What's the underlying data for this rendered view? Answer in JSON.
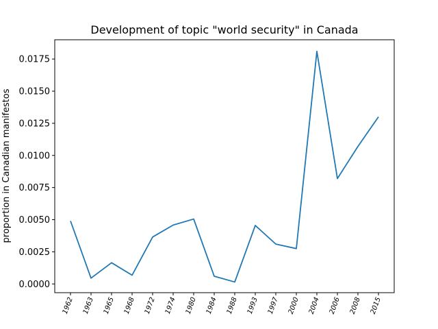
{
  "chart_data": {
    "type": "line",
    "title": "Development of topic \"world security\" in Canada",
    "xlabel": "",
    "ylabel": "proportion in Canadian manifestos",
    "categories": [
      "1962",
      "1963",
      "1965",
      "1968",
      "1972",
      "1974",
      "1980",
      "1984",
      "1988",
      "1993",
      "1997",
      "2000",
      "2004",
      "2006",
      "2008",
      "2015"
    ],
    "series": [
      {
        "color": "#1f77b4",
        "values": [
          0.0049,
          0.00045,
          0.00165,
          0.00068,
          0.00365,
          0.00458,
          0.00505,
          0.0006,
          0.00015,
          0.00455,
          0.0031,
          0.00275,
          0.0181,
          0.0082,
          0.0107,
          0.013
        ]
      }
    ],
    "yticks": [
      "0.0000",
      "0.0025",
      "0.0050",
      "0.0075",
      "0.0100",
      "0.0125",
      "0.0150",
      "0.0175"
    ],
    "ytick_values": [
      0,
      0.0025,
      0.005,
      0.0075,
      0.01,
      0.0125,
      0.015,
      0.0175
    ],
    "ylim": [
      -0.00068,
      0.019
    ],
    "grid": false
  }
}
